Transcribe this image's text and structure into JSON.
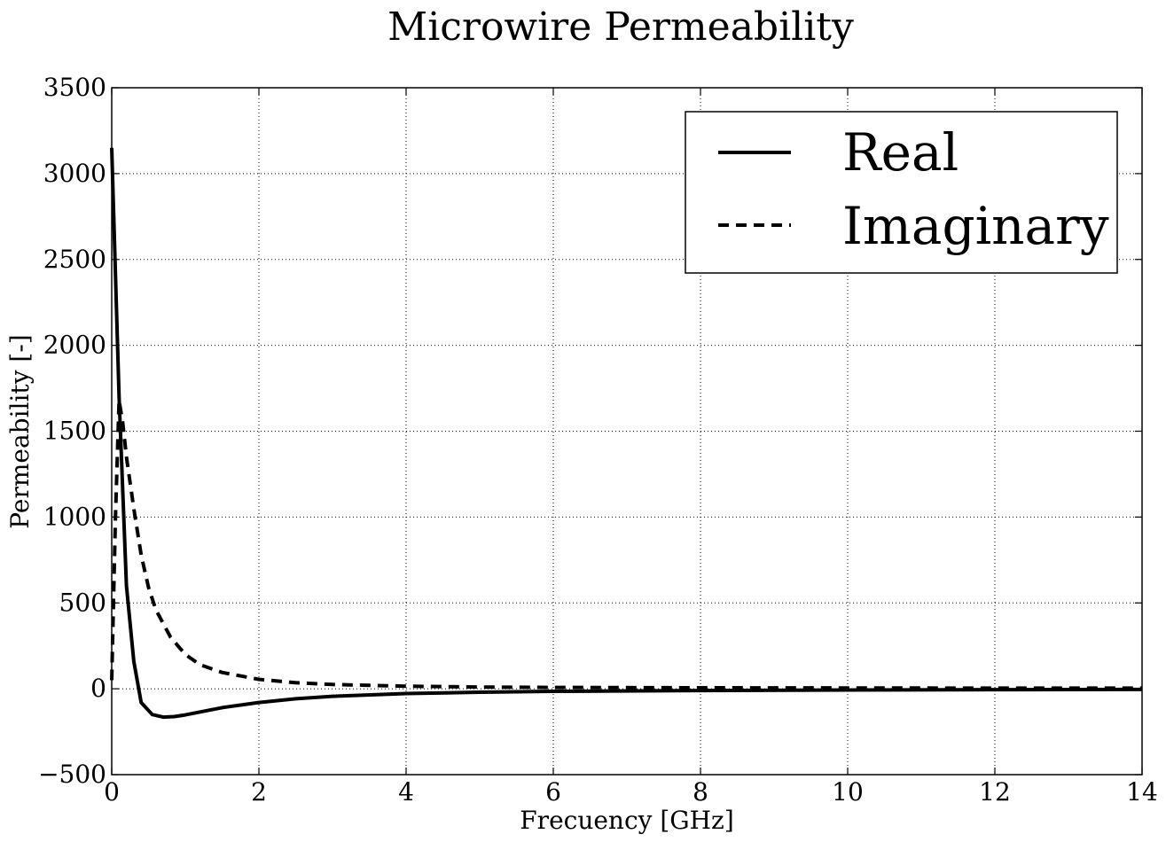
{
  "chart_data": {
    "type": "line",
    "title": "Microwire Permeability",
    "xlabel": "Frecuency [GHz]",
    "ylabel": "Permeability [-]",
    "xlim": [
      0,
      14
    ],
    "ylim": [
      -500,
      3500
    ],
    "xticks": [
      0,
      2,
      4,
      6,
      8,
      10,
      12,
      14
    ],
    "xtick_labels": [
      "0",
      "2",
      "4",
      "6",
      "8",
      "10",
      "12",
      "14"
    ],
    "yticks": [
      -500,
      0,
      500,
      1000,
      1500,
      2000,
      2500,
      3000,
      3500
    ],
    "ytick_labels": [
      "−500",
      "0",
      "500",
      "1000",
      "1500",
      "2000",
      "2500",
      "3000",
      "3500"
    ],
    "grid": true,
    "legend_position": "top-right",
    "series": [
      {
        "name": "Real",
        "style": "solid",
        "color": "#000000",
        "x": [
          0,
          0.1,
          0.2,
          0.3,
          0.4,
          0.55,
          0.7,
          0.85,
          1.0,
          1.2,
          1.5,
          2.0,
          2.5,
          3.0,
          4.0,
          5.0,
          6.0,
          8.0,
          10.0,
          12.0,
          14.0
        ],
        "y": [
          3150,
          1700,
          600,
          160,
          -80,
          -150,
          -165,
          -162,
          -152,
          -135,
          -110,
          -80,
          -58,
          -44,
          -28,
          -20,
          -15,
          -10,
          -7,
          -5,
          -4
        ]
      },
      {
        "name": "Imaginary",
        "style": "dashed",
        "color": "#000000",
        "x": [
          0,
          0.05,
          0.1,
          0.15,
          0.2,
          0.3,
          0.4,
          0.5,
          0.6,
          0.8,
          1.0,
          1.2,
          1.5,
          2.0,
          2.5,
          3.0,
          4.0,
          5.0,
          6.0,
          8.0,
          10.0,
          12.0,
          14.0
        ],
        "y": [
          50,
          1000,
          1680,
          1550,
          1350,
          1050,
          780,
          590,
          460,
          300,
          200,
          140,
          95,
          55,
          35,
          25,
          15,
          10,
          8,
          6,
          5,
          4,
          4
        ]
      }
    ]
  }
}
